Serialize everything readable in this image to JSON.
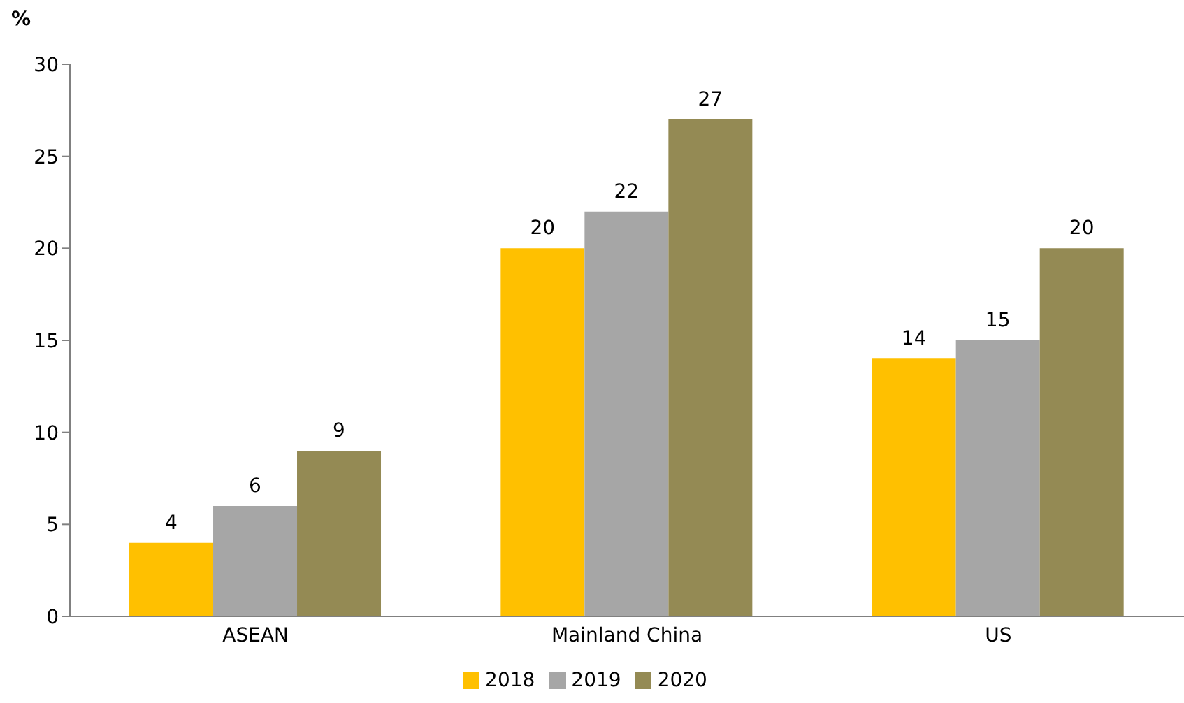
{
  "chart_data": {
    "type": "bar",
    "ylabel": "%",
    "categories": [
      "ASEAN",
      "Mainland China",
      "US"
    ],
    "series": [
      {
        "name": "2018",
        "color": "#ffc000",
        "values": [
          4,
          20,
          14
        ]
      },
      {
        "name": "2019",
        "color": "#a6a6a6",
        "values": [
          6,
          22,
          15
        ]
      },
      {
        "name": "2020",
        "color": "#948a54",
        "values": [
          9,
          27,
          20
        ]
      }
    ],
    "ylim": [
      0,
      30
    ],
    "yticks": [
      0,
      5,
      10,
      15,
      20,
      25,
      30
    ],
    "data_labels": true,
    "legend": "bottom",
    "grid": false
  }
}
